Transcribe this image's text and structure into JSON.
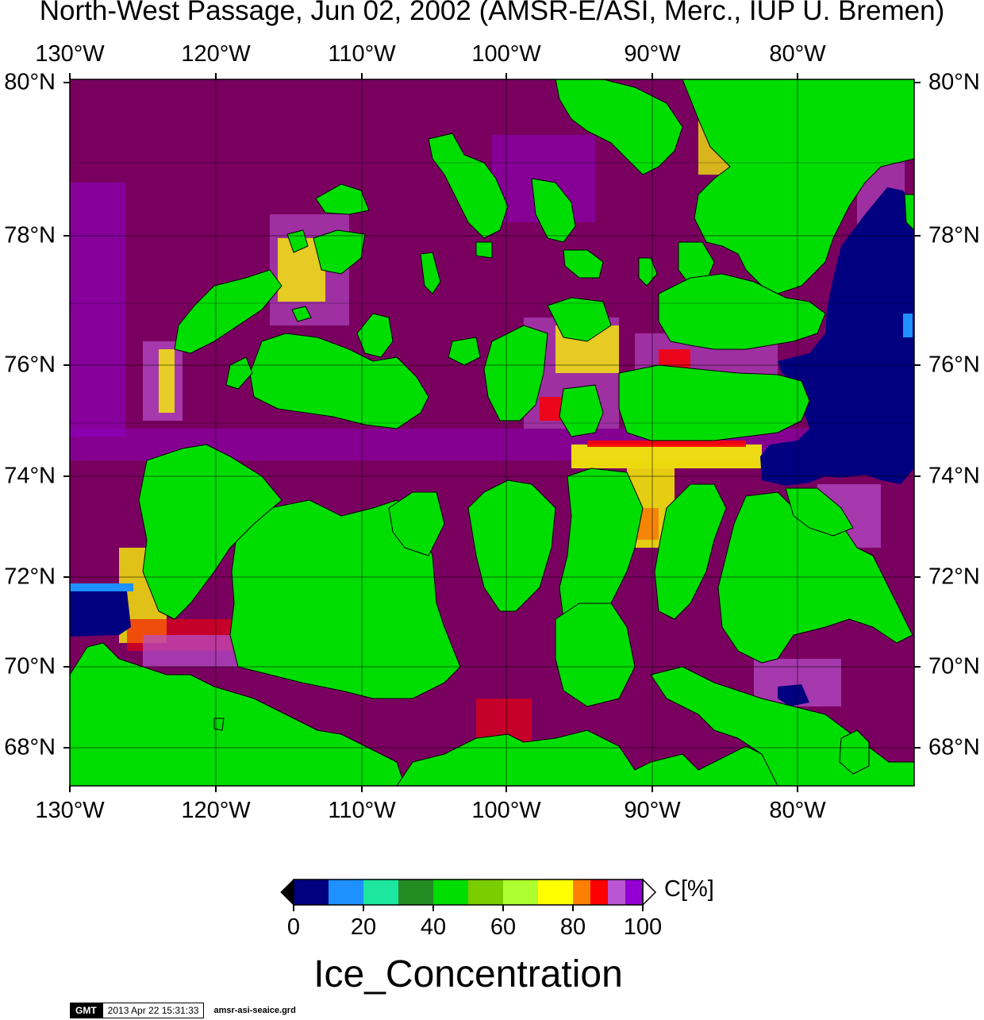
{
  "title": "North-West Passage, Jun 02, 2002 (AMSR-E/ASI, Merc., IUP U. Bremen)",
  "map": {
    "lon_labels": [
      "130°W",
      "120°W",
      "110°W",
      "100°W",
      "90°W",
      "80°W"
    ],
    "lat_labels": [
      "80°N",
      "78°N",
      "76°N",
      "74°N",
      "72°N",
      "70°N",
      "68°N"
    ],
    "colors": {
      "land": "#00dd00",
      "ice_100": "#7a0060",
      "open_water": "#000080",
      "frame": "#000000",
      "grid": "#000000"
    }
  },
  "colorbar": {
    "title": "Ice_Concentration",
    "unit": "C[%]",
    "tick_labels": [
      "0",
      "20",
      "40",
      "60",
      "80",
      "100"
    ],
    "bins": [
      {
        "range": "0-10",
        "color": "#000080"
      },
      {
        "range": "10-20",
        "color": "#1e90ff"
      },
      {
        "range": "20-30",
        "color": "#1de6a0"
      },
      {
        "range": "30-40",
        "color": "#228b22"
      },
      {
        "range": "40-50",
        "color": "#00dd00"
      },
      {
        "range": "50-60",
        "color": "#7ccd00"
      },
      {
        "range": "60-70",
        "color": "#adff2f"
      },
      {
        "range": "70-80",
        "color": "#ffff00"
      },
      {
        "range": "80-85",
        "color": "#ff7f00"
      },
      {
        "range": "85-90",
        "color": "#ff0000"
      },
      {
        "range": "90-95",
        "color": "#ba55d3"
      },
      {
        "range": "95-100",
        "color": "#9400d3"
      }
    ],
    "over_color": "#ffffff",
    "under_color": "#000000"
  },
  "footer": {
    "logo": "GMT",
    "timestamp": "2013 Apr 22 15:31:33",
    "filename": "amsr-asi-seaice.grd"
  }
}
